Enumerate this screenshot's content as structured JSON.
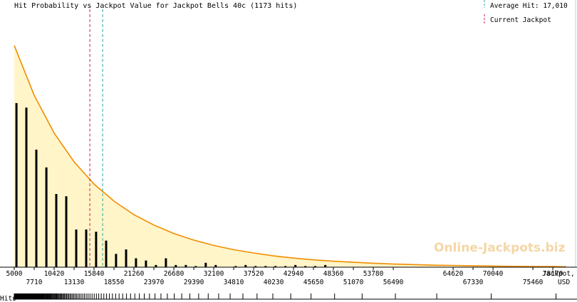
{
  "chart_data": {
    "type": "bar",
    "title": "Hit Probability vs Jackpot Value for Jackpot Bells 40c (1173 hits)",
    "xlabel": "Jackpot, USD",
    "ylabel": "",
    "grid": false,
    "legend_position": "top-right",
    "xlim": [
      5000,
      80000
    ],
    "ylim": [
      0,
      1
    ],
    "x_ticks_upper": [
      5000,
      10420,
      15840,
      21260,
      26680,
      32100,
      37520,
      42940,
      48360,
      53780,
      64620,
      70040,
      78170
    ],
    "x_ticks_lower": [
      7710,
      13130,
      18550,
      23970,
      29390,
      34810,
      40230,
      45650,
      51070,
      56490,
      67330,
      75460
    ],
    "x_axis_label_line1": "Jackpot,",
    "x_axis_label_line2": "USD",
    "hits_axis_label": "Hits",
    "bars_x": [
      5300,
      6650,
      8000,
      9360,
      10710,
      12060,
      13420,
      14770,
      16120,
      17480,
      18830,
      20190,
      21540,
      22890,
      24250,
      25600,
      26950,
      28310,
      29660,
      31010,
      32370,
      35080,
      36430,
      37780,
      39140,
      40490,
      41840,
      43200,
      44550,
      45900,
      47260
    ],
    "bars_y": [
      0.74,
      0.72,
      0.53,
      0.45,
      0.33,
      0.32,
      0.17,
      0.17,
      0.16,
      0.12,
      0.06,
      0.08,
      0.04,
      0.03,
      0.01,
      0.04,
      0.01,
      0.01,
      0.005,
      0.02,
      0.01,
      0.005,
      0.01,
      0.005,
      0.005,
      0.005,
      0.005,
      0.01,
      0.005,
      0.005,
      0.01
    ],
    "curve": {
      "name": "Hit probability",
      "x": [
        5000,
        7710,
        10420,
        13130,
        15840,
        18550,
        21260,
        23970,
        26680,
        29390,
        32100,
        34810,
        37520,
        40230,
        42940,
        45650,
        48360,
        51070,
        53780,
        56490,
        59210,
        61920,
        64620,
        67330,
        70040,
        72750,
        75460,
        78170,
        80000
      ],
      "y": [
        1.0,
        0.775,
        0.605,
        0.475,
        0.375,
        0.298,
        0.237,
        0.19,
        0.152,
        0.122,
        0.098,
        0.079,
        0.064,
        0.051,
        0.041,
        0.033,
        0.027,
        0.022,
        0.018,
        0.014,
        0.012,
        0.009,
        0.008,
        0.006,
        0.005,
        0.004,
        0.003,
        0.003,
        0.002
      ]
    },
    "current_jackpot": 15270,
    "average_hit": 17010,
    "legend": [
      {
        "label": "Average Hit: 17,010",
        "color": "#2aa6a6"
      },
      {
        "label": "Current Jackpot",
        "color": "#cc2255"
      }
    ],
    "hits_strip": [
      5000,
      5050,
      5110,
      5170,
      5230,
      5300,
      5360,
      5430,
      5490,
      5560,
      5620,
      5690,
      5760,
      5820,
      5890,
      5950,
      6010,
      6070,
      6140,
      6200,
      6260,
      6330,
      6390,
      6450,
      6520,
      6580,
      6650,
      6710,
      6780,
      6840,
      6900,
      6970,
      7030,
      7100,
      7170,
      7230,
      7300,
      7360,
      7430,
      7500,
      7560,
      7630,
      7690,
      7760,
      7830,
      7890,
      7960,
      8020,
      8090,
      8160,
      8230,
      8300,
      8370,
      8440,
      8520,
      8590,
      8660,
      8730,
      8810,
      8880,
      8960,
      9040,
      9120,
      9200,
      9280,
      9370,
      9450,
      9530,
      9620,
      9700,
      9790,
      9880,
      9970,
      10060,
      10160,
      10250,
      10350,
      10450,
      10550,
      10650,
      10760,
      10870,
      10980,
      11090,
      11210,
      11330,
      11450,
      11580,
      11710,
      11840,
      11980,
      12120,
      12270,
      12420,
      12580,
      12740,
      12910,
      13090,
      13270,
      13460,
      13660,
      13870,
      14080,
      14310,
      14540,
      14780,
      15030,
      15290,
      15570,
      15860,
      16160,
      16480,
      16820,
      17170,
      17540,
      17930,
      18340,
      18780,
      19240,
      19730,
      20250,
      20800,
      21380,
      22000,
      22660,
      23370,
      24120,
      24930,
      25800,
      26740,
      27750,
      28850,
      30050,
      31350,
      32770,
      34330,
      36060,
      37980,
      40130,
      42560,
      45320,
      48520,
      52260,
      56780,
      62400,
      69800,
      78600
    ],
    "watermark": "Online-Jackpots.biz"
  }
}
